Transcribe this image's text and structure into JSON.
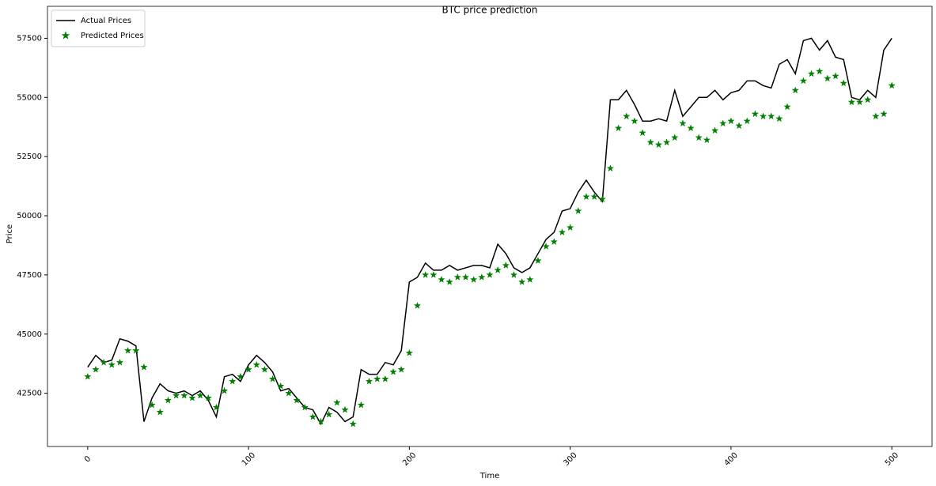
{
  "chart_data": {
    "type": "line",
    "title": "BTC price prediction",
    "x_label": "Time",
    "y_label": "Price",
    "xlim": [
      -25,
      525
    ],
    "ylim": [
      40250,
      58850
    ],
    "xticks": [
      0,
      100,
      200,
      300,
      400,
      500
    ],
    "yticks": [
      42500,
      45000,
      47500,
      50000,
      52500,
      55000,
      57500
    ],
    "legend": "upper left",
    "x": [
      0,
      5,
      10,
      15,
      20,
      25,
      30,
      35,
      40,
      45,
      50,
      55,
      60,
      65,
      70,
      75,
      80,
      85,
      90,
      95,
      100,
      105,
      110,
      115,
      120,
      125,
      130,
      135,
      140,
      145,
      150,
      155,
      160,
      165,
      170,
      175,
      180,
      185,
      190,
      195,
      200,
      205,
      210,
      215,
      220,
      225,
      230,
      235,
      240,
      245,
      250,
      255,
      260,
      265,
      270,
      275,
      280,
      285,
      290,
      295,
      300,
      305,
      310,
      315,
      320,
      325,
      330,
      335,
      340,
      345,
      350,
      355,
      360,
      365,
      370,
      375,
      380,
      385,
      390,
      395,
      400,
      405,
      410,
      415,
      420,
      425,
      430,
      435,
      440,
      445,
      450,
      455,
      460,
      465,
      470,
      475,
      480,
      485,
      490,
      495,
      500
    ],
    "series": [
      {
        "name": "Actual Prices",
        "color": "#000000",
        "marker": "line",
        "values": [
          43600,
          44100,
          43800,
          43900,
          44800,
          44700,
          44500,
          41300,
          42300,
          42900,
          42600,
          42500,
          42600,
          42400,
          42600,
          42200,
          41500,
          43200,
          43300,
          43000,
          43700,
          44100,
          43800,
          43400,
          42600,
          42700,
          42300,
          41900,
          41800,
          41200,
          41900,
          41700,
          41300,
          41500,
          43500,
          43300,
          43300,
          43800,
          43700,
          44300,
          47200,
          47400,
          48000,
          47700,
          47700,
          47900,
          47700,
          47800,
          47900,
          47900,
          47800,
          48800,
          48400,
          47800,
          47600,
          47800,
          48400,
          49000,
          49300,
          50200,
          50300,
          51000,
          51500,
          51000,
          50600,
          54900,
          54900,
          55300,
          54700,
          54000,
          54000,
          54100,
          54000,
          55300,
          54200,
          54600,
          55000,
          55000,
          55300,
          54900,
          55200,
          55300,
          55700,
          55700,
          55500,
          55400,
          56400,
          56600,
          56000,
          57400,
          57500,
          57000,
          57400,
          56700,
          56600,
          55000,
          54900,
          55300,
          55000,
          57000,
          57500
        ]
      },
      {
        "name": "Predicted Prices",
        "color": "#008000",
        "marker": "star",
        "values": [
          43200,
          43500,
          43800,
          43700,
          43800,
          44300,
          44300,
          43600,
          42000,
          41700,
          42200,
          42400,
          42400,
          42300,
          42400,
          42300,
          41900,
          42600,
          43000,
          43200,
          43500,
          43700,
          43500,
          43100,
          42800,
          42500,
          42200,
          41900,
          41500,
          41300,
          41600,
          42100,
          41800,
          41200,
          42000,
          43000,
          43100,
          43100,
          43400,
          43500,
          44200,
          46200,
          47500,
          47500,
          47300,
          47200,
          47400,
          47400,
          47300,
          47400,
          47500,
          47700,
          47900,
          47500,
          47200,
          47300,
          48100,
          48700,
          48900,
          49300,
          49500,
          50200,
          50800,
          50800,
          50700,
          52000,
          53700,
          54200,
          54000,
          53500,
          53100,
          53000,
          53100,
          53300,
          53900,
          53700,
          53300,
          53200,
          53600,
          53900,
          54000,
          53800,
          54000,
          54300,
          54200,
          54200,
          54100,
          54600,
          55300,
          55700,
          56000,
          56100,
          55800,
          55900,
          55600,
          54800,
          54800,
          54900,
          54200,
          54300,
          55500
        ]
      }
    ]
  }
}
